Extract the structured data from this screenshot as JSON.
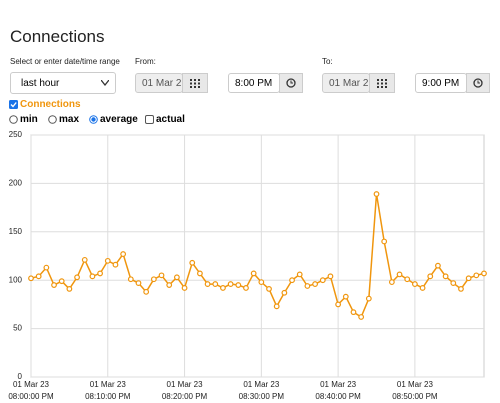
{
  "header": {
    "title": "Connections"
  },
  "form": {
    "range_label": "Select or enter date/time range",
    "range_value": "last hour",
    "from_label": "From:",
    "from_date": "01 Mar 2",
    "from_time": "8:00 PM",
    "to_label": "To:",
    "to_date": "01 Mar 2",
    "to_time": "9:00 PM"
  },
  "options": {
    "modes": [
      "min",
      "max",
      "average",
      "actual"
    ]
  },
  "chart_data": {
    "type": "line",
    "x": [
      0,
      1,
      2,
      3,
      4,
      5,
      6,
      7,
      8,
      9,
      10,
      11,
      12,
      13,
      14,
      15,
      16,
      17,
      18,
      19,
      20,
      21,
      22,
      23,
      24,
      25,
      26,
      27,
      28,
      29,
      30,
      31,
      32,
      33,
      34,
      35,
      36,
      37,
      38,
      39,
      40,
      41,
      42,
      43,
      44,
      45,
      46,
      47,
      48,
      49,
      50,
      51,
      52,
      53,
      54,
      55,
      56,
      57,
      58,
      59
    ],
    "series": [
      {
        "name": "Connections",
        "color": "#f0960e",
        "values": [
          102,
          104,
          113,
          95,
          99,
          91,
          103,
          121,
          104,
          107,
          120,
          116,
          127,
          101,
          97,
          88,
          101,
          105,
          95,
          103,
          92,
          118,
          107,
          96,
          96,
          92,
          96,
          95,
          92,
          107,
          98,
          91,
          73,
          87,
          100,
          106,
          94,
          96,
          100,
          104,
          75,
          83,
          67,
          62,
          81,
          189,
          140,
          98,
          106,
          101,
          96,
          92,
          104,
          115,
          104,
          97,
          91,
          102,
          105,
          107
        ]
      }
    ],
    "xlim": [
      0,
      59
    ],
    "ylim": [
      0,
      250
    ],
    "yticks": [
      0,
      50,
      100,
      150,
      200,
      250
    ],
    "xticks": [
      {
        "value": 0,
        "label": [
          "01 Mar 23",
          "08:00:00 PM"
        ]
      },
      {
        "value": 10,
        "label": [
          "01 Mar 23",
          "08:10:00 PM"
        ]
      },
      {
        "value": 20,
        "label": [
          "01 Mar 23",
          "08:20:00 PM"
        ]
      },
      {
        "value": 30,
        "label": [
          "01 Mar 23",
          "08:30:00 PM"
        ]
      },
      {
        "value": 40,
        "label": [
          "01 Mar 23",
          "08:40:00 PM"
        ]
      },
      {
        "value": 50,
        "label": [
          "01 Mar 23",
          "08:50:00 PM"
        ]
      }
    ],
    "grid": true
  }
}
